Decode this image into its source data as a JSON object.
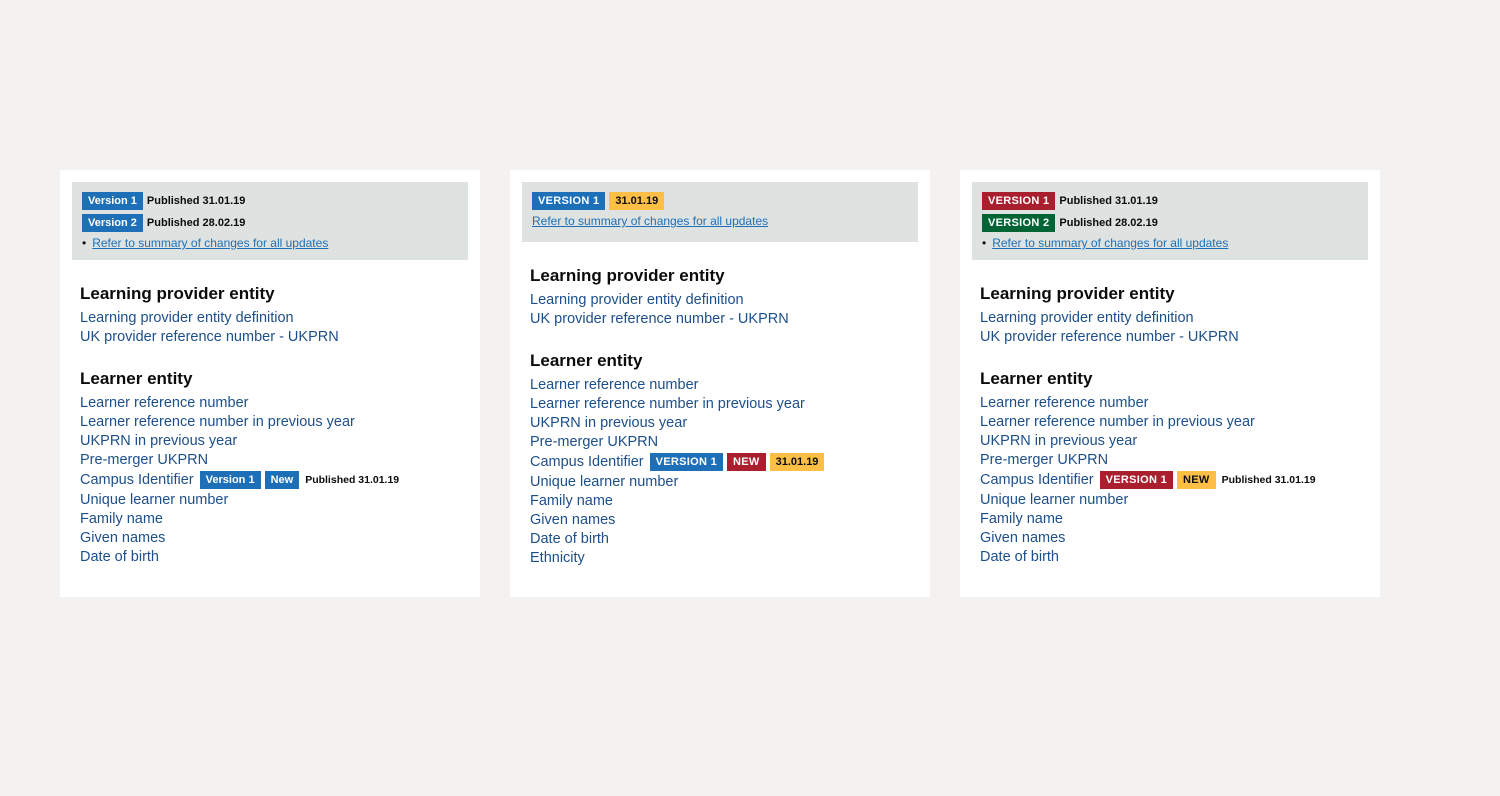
{
  "colors": {
    "blue": "#1d70b8",
    "red": "#aa1f2e",
    "green": "#006435",
    "yellow": "#ffbf47",
    "link": "#1d4f8b",
    "bannerBg": "#dee3e2"
  },
  "card1": {
    "banner": {
      "rows": [
        {
          "badge": "Version 1",
          "badgeClass": "badge-blue cap",
          "meta": "Published 31.01.19"
        },
        {
          "badge": "Version 2",
          "badgeClass": "badge-blue cap",
          "meta": "Published 28.02.19"
        }
      ],
      "summary": "Refer to summary of changes for all updates",
      "showBullet": true
    },
    "sections": [
      {
        "title": "Learning provider entity",
        "links": [
          {
            "text": "Learning provider entity definition"
          },
          {
            "text": "UK provider reference number - UKPRN"
          }
        ]
      },
      {
        "title": "Learner entity",
        "links": [
          {
            "text": "Learner reference number"
          },
          {
            "text": "Learner reference number in previous year"
          },
          {
            "text": "UKPRN in previous year"
          },
          {
            "text": "Pre-merger UKPRN"
          },
          {
            "text": "Campus Identifier",
            "badges": [
              {
                "t": "Version 1",
                "c": "badge-blue cap"
              },
              {
                "t": "New",
                "c": "badge-blue cap"
              }
            ],
            "trail": "Published 31.01.19"
          },
          {
            "text": "Unique learner number"
          },
          {
            "text": "Family name"
          },
          {
            "text": "Given names"
          },
          {
            "text": "Date of birth"
          }
        ]
      }
    ]
  },
  "card2": {
    "banner": {
      "rows": [
        {
          "badge": "VERSION 1",
          "badgeClass": "badge-blue upper",
          "datebadge": "31.01.19",
          "dateClass": "badge-yellow"
        }
      ],
      "summary": "Refer to summary of changes for all updates",
      "summaryInline": true
    },
    "sections": [
      {
        "title": "Learning provider entity",
        "links": [
          {
            "text": "Learning provider entity definition"
          },
          {
            "text": "UK provider reference number - UKPRN"
          }
        ]
      },
      {
        "title": "Learner entity",
        "links": [
          {
            "text": "Learner reference number"
          },
          {
            "text": "Learner reference number in previous year"
          },
          {
            "text": "UKPRN in previous year"
          },
          {
            "text": "Pre-merger UKPRN"
          },
          {
            "text": "Campus Identifier",
            "badges": [
              {
                "t": "VERSION 1",
                "c": "badge-blue upper"
              },
              {
                "t": "NEW",
                "c": "badge-red upper"
              },
              {
                "t": "31.01.19",
                "c": "badge-yellow"
              }
            ]
          },
          {
            "text": "Unique learner number"
          },
          {
            "text": "Family name"
          },
          {
            "text": "Given names"
          },
          {
            "text": "Date of birth"
          },
          {
            "text": "Ethnicity"
          }
        ]
      }
    ]
  },
  "card3": {
    "banner": {
      "rows": [
        {
          "badge": "VERSION 1",
          "badgeClass": "badge-red upper",
          "meta": "Published 31.01.19"
        },
        {
          "badge": "VERSION 2",
          "badgeClass": "badge-green upper",
          "meta": "Published 28.02.19"
        }
      ],
      "summary": "Refer to summary of changes for all updates",
      "showBullet": true
    },
    "sections": [
      {
        "title": "Learning provider entity",
        "links": [
          {
            "text": "Learning provider entity definition"
          },
          {
            "text": "UK provider reference number - UKPRN"
          }
        ]
      },
      {
        "title": "Learner entity",
        "links": [
          {
            "text": "Learner reference number"
          },
          {
            "text": "Learner reference number in previous year"
          },
          {
            "text": "UKPRN in previous year"
          },
          {
            "text": "Pre-merger UKPRN"
          },
          {
            "text": "Campus Identifier",
            "badges": [
              {
                "t": "VERSION 1",
                "c": "badge-red upper"
              },
              {
                "t": "NEW",
                "c": "badge-yellow upper"
              }
            ],
            "trail": "Published 31.01.19"
          },
          {
            "text": "Unique learner number"
          },
          {
            "text": "Family name"
          },
          {
            "text": "Given names"
          },
          {
            "text": "Date of birth"
          }
        ]
      }
    ]
  }
}
